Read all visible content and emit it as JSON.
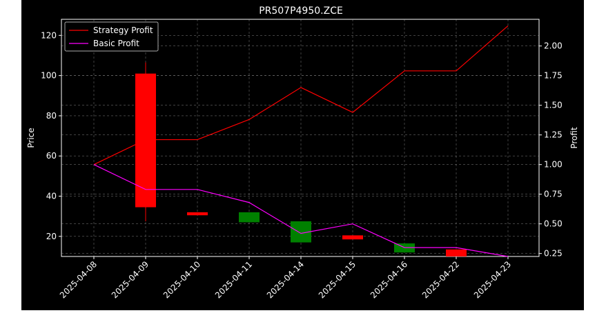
{
  "chart_data": {
    "type": "candlestick+line",
    "title": "PR507P4950.ZCE",
    "ylabel_left": "Price",
    "ylabel_right": "Profit",
    "categories": [
      "2025-04-08",
      "2025-04-09",
      "2025-04-10",
      "2025-04-11",
      "2025-04-14",
      "2025-04-15",
      "2025-04-16",
      "2025-04-22",
      "2025-04-23"
    ],
    "left_axis": {
      "ylim": [
        10,
        128
      ],
      "ticks": [
        20,
        40,
        60,
        80,
        100,
        120
      ]
    },
    "right_axis": {
      "ylim": [
        0.225,
        2.225
      ],
      "ticks": [
        "0.25",
        "0.50",
        "0.75",
        "1.00",
        "1.25",
        "1.50",
        "1.75",
        "2.00"
      ]
    },
    "grid": true,
    "legend_position": "top-left",
    "candles": [
      null,
      {
        "open": 34.5,
        "close": 101,
        "high": 106.5,
        "low": 27.5,
        "color": "#ff0000"
      },
      {
        "open": 30.5,
        "close": 32,
        "high": 32,
        "low": 30.5,
        "color": "#ff0000"
      },
      {
        "open": 32,
        "close": 27,
        "high": 32,
        "low": 27,
        "color": "#008000"
      },
      {
        "open": 27.5,
        "close": 17,
        "high": 27.5,
        "low": 17,
        "color": "#008000"
      },
      {
        "open": 18.5,
        "close": 20.5,
        "high": 20.5,
        "low": 18.5,
        "color": "#ff0000"
      },
      {
        "open": 16.5,
        "close": 12,
        "high": 16.5,
        "low": 12,
        "color": "#008000"
      },
      {
        "open": 10,
        "close": 13.5,
        "high": 13.5,
        "low": 10,
        "color": "#ff0000"
      },
      null
    ],
    "series": [
      {
        "name": "Strategy Profit",
        "color": "#ff0000",
        "axis": "right",
        "values": [
          1.0,
          1.21,
          1.21,
          1.38,
          1.65,
          1.44,
          1.79,
          1.79,
          2.17
        ]
      },
      {
        "name": "Basic Profit",
        "color": "#ff00ff",
        "axis": "right",
        "values": [
          1.0,
          0.79,
          0.79,
          0.68,
          0.42,
          0.5,
          0.3,
          0.3,
          0.225
        ]
      }
    ]
  }
}
